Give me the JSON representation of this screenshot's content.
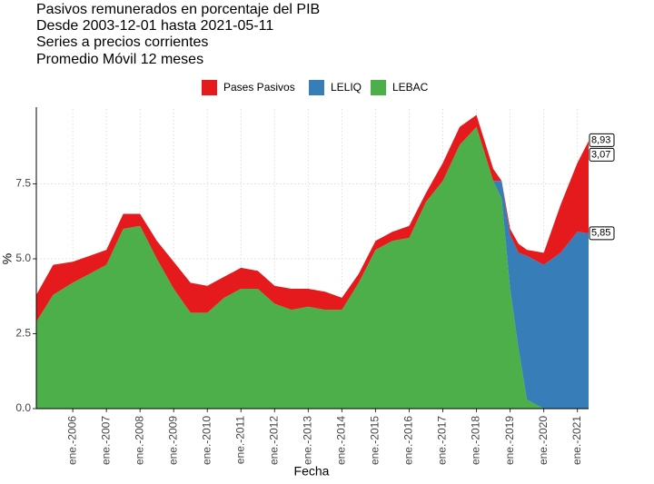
{
  "chart_data": {
    "type": "stacked_area",
    "title": [
      "Pasivos remunerados en porcentaje del PIB",
      "Desde 2003-12-01 hasta 2021-05-11",
      "Series a precios corrientes",
      "Promedio Móvil 12 meses"
    ],
    "x_label": "Fecha",
    "y_label": "%",
    "x": [
      "2004-12",
      "2005-06",
      "2006-01",
      "2006-07",
      "2007-01",
      "2007-07",
      "2008-01",
      "2008-07",
      "2009-01",
      "2009-07",
      "2010-01",
      "2010-07",
      "2011-01",
      "2011-07",
      "2012-01",
      "2012-07",
      "2013-01",
      "2013-07",
      "2014-01",
      "2014-07",
      "2015-01",
      "2015-07",
      "2016-01",
      "2016-07",
      "2017-01",
      "2017-07",
      "2018-01",
      "2018-07",
      "2018-10",
      "2019-01",
      "2019-04",
      "2019-07",
      "2020-01",
      "2020-07",
      "2021-01",
      "2021-05"
    ],
    "series": [
      {
        "name": "Pases Pasivos",
        "color": "#e41a1c",
        "values": [
          0.9,
          1.0,
          0.7,
          0.6,
          0.5,
          0.5,
          0.4,
          0.6,
          0.9,
          1.0,
          0.9,
          0.7,
          0.7,
          0.6,
          0.6,
          0.7,
          0.6,
          0.6,
          0.4,
          0.3,
          0.3,
          0.3,
          0.4,
          0.3,
          0.6,
          0.6,
          0.4,
          0.4,
          0,
          0.2,
          0.3,
          0.2,
          0.4,
          1.6,
          2.3,
          3.074
        ],
        "value_labels": [
          null,
          null,
          null,
          null,
          null,
          null,
          null,
          null,
          null,
          null,
          null,
          null,
          null,
          null,
          null,
          null,
          null,
          null,
          null,
          null,
          null,
          null,
          null,
          null,
          null,
          null,
          null,
          null,
          null,
          null,
          null,
          null,
          null,
          null,
          null,
          "3,07"
        ]
      },
      {
        "name": "LELIQ",
        "color": "#377eb8",
        "values": [
          0,
          0,
          0,
          0,
          0,
          0,
          0,
          0,
          0,
          0,
          0,
          0,
          0,
          0,
          0,
          0,
          0,
          0,
          0,
          0,
          0,
          0,
          0,
          0,
          0,
          0,
          0,
          0,
          0.6,
          1.8,
          3.2,
          4.8,
          4.8,
          5.2,
          5.9,
          5.854
        ],
        "value_labels": [
          null,
          null,
          null,
          null,
          null,
          null,
          null,
          null,
          null,
          null,
          null,
          null,
          null,
          null,
          null,
          null,
          null,
          null,
          null,
          null,
          null,
          null,
          null,
          null,
          null,
          null,
          null,
          null,
          null,
          null,
          null,
          null,
          null,
          null,
          null,
          "5,85"
        ]
      },
      {
        "name": "LEBAC",
        "color": "#4daf4a",
        "values": [
          2.9,
          3.8,
          4.2,
          4.5,
          4.8,
          6.0,
          6.1,
          5.0,
          4.0,
          3.2,
          3.2,
          3.7,
          4.0,
          4.0,
          3.5,
          3.3,
          3.4,
          3.3,
          3.3,
          4.2,
          5.3,
          5.6,
          5.7,
          6.9,
          7.6,
          8.8,
          9.4,
          7.6,
          7.0,
          4.0,
          2.0,
          0.3,
          0,
          0,
          0,
          0
        ]
      }
    ],
    "total_label": {
      "value": 8.928,
      "label": "8,93"
    },
    "xlim": [
      "2004-12",
      "2021-05"
    ],
    "xticks": [
      {
        "value": "2006-01",
        "label": "ene.-2006"
      },
      {
        "value": "2007-01",
        "label": "ene.-2007"
      },
      {
        "value": "2008-01",
        "label": "ene.-2008"
      },
      {
        "value": "2009-01",
        "label": "ene.-2009"
      },
      {
        "value": "2010-01",
        "label": "ene.-2010"
      },
      {
        "value": "2011-01",
        "label": "ene.-2011"
      },
      {
        "value": "2012-01",
        "label": "ene.-2012"
      },
      {
        "value": "2013-01",
        "label": "ene.-2013"
      },
      {
        "value": "2014-01",
        "label": "ene.-2014"
      },
      {
        "value": "2015-01",
        "label": "ene.-2015"
      },
      {
        "value": "2016-01",
        "label": "ene.-2016"
      },
      {
        "value": "2017-01",
        "label": "ene.-2017"
      },
      {
        "value": "2018-01",
        "label": "ene.-2018"
      },
      {
        "value": "2019-01",
        "label": "ene.-2019"
      },
      {
        "value": "2020-01",
        "label": "ene.-2020"
      },
      {
        "value": "2021-01",
        "label": "ene.-2021"
      }
    ],
    "ylim": [
      0,
      10
    ],
    "yticks": [
      {
        "value": 0,
        "label": "0.0"
      },
      2.5,
      {
        "value": 5,
        "label": "5.0"
      },
      7.5
    ],
    "grid": true,
    "legend": "top"
  }
}
